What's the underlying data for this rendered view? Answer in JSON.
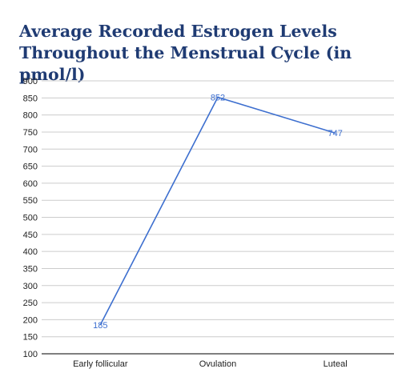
{
  "chart_data": {
    "type": "line",
    "title": "Average Recorded Estrogen Levels Throughout the Menstrual Cycle (in pmol/l)",
    "xlabel": "",
    "ylabel": "",
    "categories": [
      "Early follicular",
      "Ovulation",
      "Luteal"
    ],
    "series": [
      {
        "values": [
          185,
          852,
          747
        ],
        "color": "#3d6fcf"
      }
    ],
    "data_labels": [
      "185",
      "852",
      "747"
    ],
    "ylim": [
      100,
      900
    ],
    "yticks": [
      100,
      150,
      200,
      250,
      300,
      350,
      400,
      450,
      500,
      550,
      600,
      650,
      700,
      750,
      800,
      850,
      900
    ],
    "grid": true,
    "legend": "none"
  }
}
